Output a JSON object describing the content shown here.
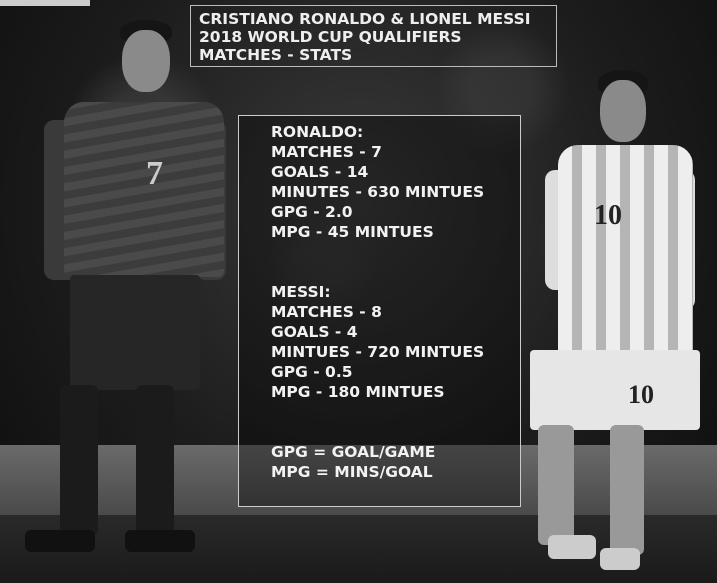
{
  "title": {
    "lines": [
      "CRISTIANO RONALDO & LIONEL MESSI",
      "2018 WORLD CUP QUALIFIERS",
      "MATCHES - STATS"
    ]
  },
  "ronaldo": {
    "heading": "RONALDO:",
    "lines": [
      "MATCHES - 7",
      "GOALS - 14",
      "MINUTES - 630 MINTUES",
      "GPG - 2.0",
      "MPG - 45 MINTUES"
    ],
    "shirt_number": "7"
  },
  "messi": {
    "heading": "MESSI:",
    "lines": [
      "MATCHES - 8",
      "GOALS - 4",
      "MINTUES - 720 MINTUES",
      "GPG - 0.5",
      "MPG - 180 MINTUES"
    ],
    "shirt_number": "10"
  },
  "legend": {
    "lines": [
      "GPG = GOAL/GAME",
      "MPG = MINS/GOAL"
    ]
  },
  "colors": {
    "text": "#f2f2f2",
    "background": "#1c1c1c"
  }
}
